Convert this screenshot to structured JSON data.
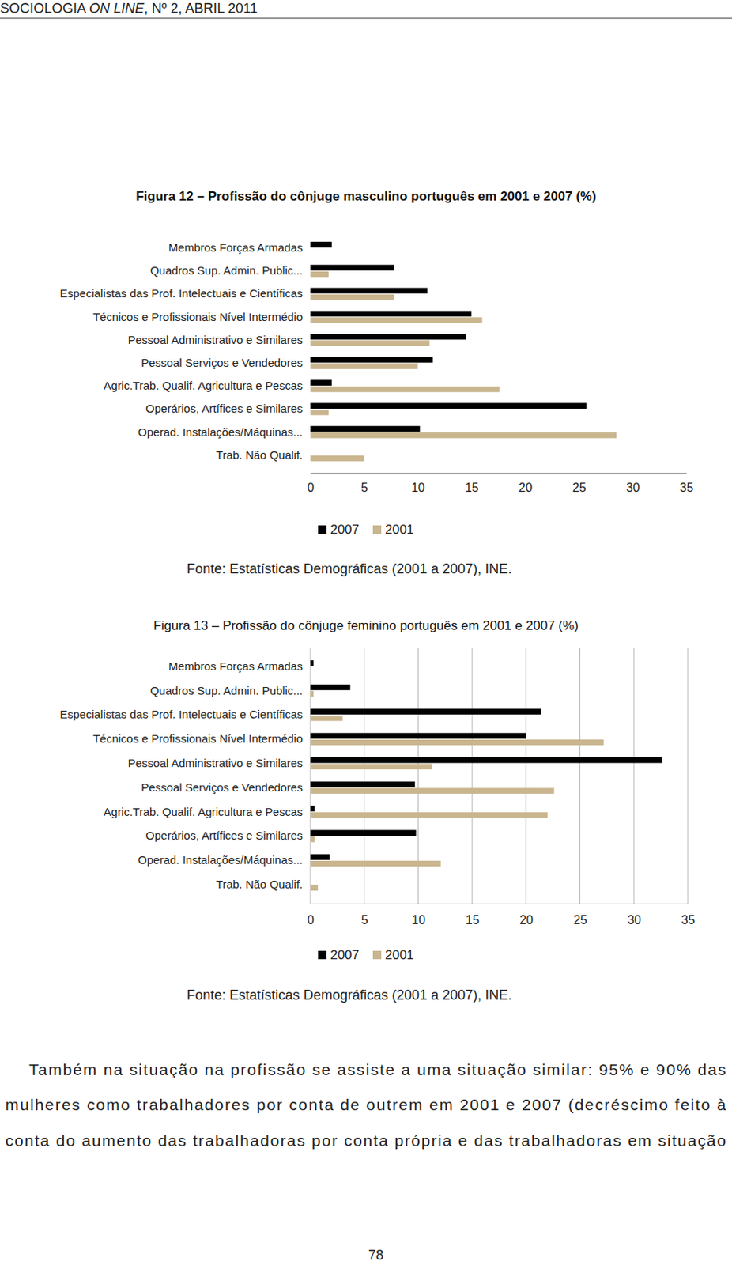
{
  "header": [
    "SOCIOLOGIA ",
    "ON LINE",
    ", Nº 2, ABRIL 2011"
  ],
  "chart_data": [
    {
      "type": "bar",
      "orientation": "horizontal",
      "title": "Figura 12 – Profissão do cônjuge masculino português em 2001 e 2007 (%)",
      "source": "Fonte: Estatísticas Demográficas (2001 a 2007), INE.",
      "categories": [
        "Membros Forças Armadas",
        "Quadros Sup. Admin. Public...",
        "Especialistas das Prof. Intelectuais e Científicas",
        "Técnicos e Profissionais Nível Intermédio",
        "Pessoal Administrativo e Similares",
        "Pessoal Serviços e Vendedores",
        "Agric.Trab. Qualif. Agricultura e Pescas",
        "Operários, Artífices e Similares",
        "Operad. Instalações/Máquinas...",
        "Trab. Não Qualif."
      ],
      "series": [
        {
          "name": "2007",
          "color": "#000000",
          "values": [
            2.0,
            7.8,
            10.9,
            15.0,
            14.5,
            11.4,
            2.0,
            25.7,
            10.2,
            0
          ]
        },
        {
          "name": "2001",
          "color": "#c9b58e",
          "values": [
            0,
            1.7,
            7.8,
            16.0,
            11.1,
            10.0,
            17.6,
            1.7,
            28.5,
            5.0
          ]
        }
      ],
      "xlim": [
        0,
        35
      ],
      "xticks": [
        0,
        5,
        10,
        15,
        20,
        25,
        30,
        35
      ],
      "grid": false,
      "legend": "bottom"
    },
    {
      "type": "bar",
      "orientation": "horizontal",
      "title": "Figura 13 – Profissão do cônjuge feminino português em 2001 e 2007 (%)",
      "source": "Fonte: Estatísticas Demográficas (2001 a 2007), INE.",
      "categories": [
        "Membros Forças Armadas",
        "Quadros Sup. Admin. Public...",
        "Especialistas das Prof. Intelectuais e Científicas",
        "Técnicos e Profissionais Nível Intermédio",
        "Pessoal Administrativo e Similares",
        "Pessoal Serviços e Vendedores",
        "Agric.Trab. Qualif. Agricultura e Pescas",
        "Operários, Artífices e Similares",
        "Operad. Instalações/Máquinas...",
        "Trab. Não Qualif."
      ],
      "series": [
        {
          "name": "2007",
          "color": "#000000",
          "values": [
            0.3,
            3.7,
            21.4,
            20.0,
            32.6,
            9.7,
            0.4,
            9.8,
            1.8,
            0
          ]
        },
        {
          "name": "2001",
          "color": "#c9b58e",
          "values": [
            0,
            0.3,
            3.0,
            27.2,
            11.3,
            22.6,
            22.0,
            0.4,
            12.1,
            0.7
          ]
        }
      ],
      "xlim": [
        0,
        35
      ],
      "xticks": [
        0,
        5,
        10,
        15,
        20,
        25,
        30,
        35
      ],
      "grid": true,
      "legend": "bottom"
    }
  ],
  "body": [
    "Também na situação na profissão se assiste a uma situação similar: 95% e 90% das",
    "mulheres como trabalhadores por conta de outrem em 2001 e 2007 (decréscimo feito à",
    "conta do aumento das trabalhadoras por conta própria e das trabalhadoras em situação"
  ],
  "page_number": "78"
}
